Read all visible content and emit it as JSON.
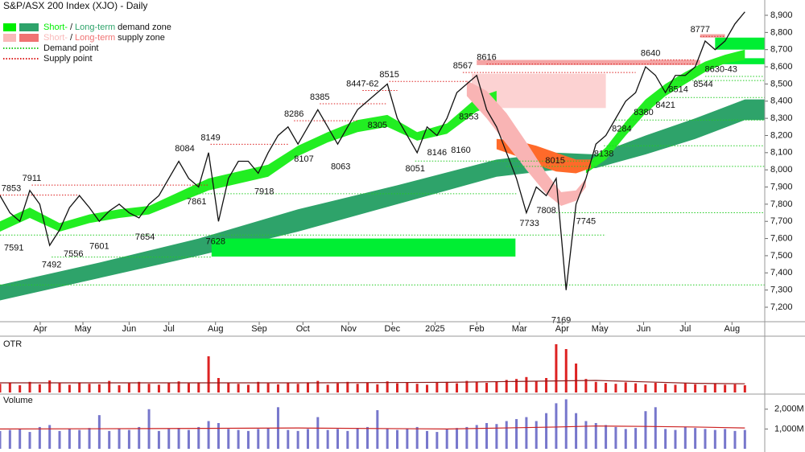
{
  "chart_data": {
    "type": "line",
    "title": "S&P/ASX 200 Index (XJO) - Daily",
    "legend": [
      {
        "short": "Short-",
        "sep": "/",
        "long": "Long-term",
        "rest": "demand zone",
        "colors": [
          "#00ee00",
          "#2ea36a"
        ]
      },
      {
        "short": "Short-",
        "sep": "/",
        "long": "Long-term",
        "rest": "supply zone",
        "colors": [
          "#f9b9b9",
          "#f07272"
        ]
      },
      {
        "label": "Demand point",
        "color": "#22cc22"
      },
      {
        "label": "Supply point",
        "color": "#dd2222"
      }
    ],
    "xlim": [
      0,
      77
    ],
    "ylim": [
      7125,
      8989
    ],
    "xticks": [
      {
        "value": 4.05,
        "label": "Apr"
      },
      {
        "value": 8.35,
        "label": "May"
      },
      {
        "value": 13,
        "label": "Jun"
      },
      {
        "value": 17,
        "label": "Jul"
      },
      {
        "value": 21.7,
        "label": "Aug"
      },
      {
        "value": 26.1,
        "label": "Sep"
      },
      {
        "value": 30.5,
        "label": "Oct"
      },
      {
        "value": 35.1,
        "label": "Nov"
      },
      {
        "value": 39.5,
        "label": "Dec"
      },
      {
        "value": 43.8,
        "label": "2025"
      },
      {
        "value": 48,
        "label": "Feb"
      },
      {
        "value": 52.3,
        "label": "Mar"
      },
      {
        "value": 56.6,
        "label": "Apr"
      },
      {
        "value": 60.4,
        "label": "May"
      },
      {
        "value": 64.8,
        "label": "Jun"
      },
      {
        "value": 69,
        "label": "Jul"
      },
      {
        "value": 73.7,
        "label": "Aug"
      }
    ],
    "yticks": [
      {
        "value": 7200,
        "label": "7,200"
      },
      {
        "value": 7300,
        "label": "7,300"
      },
      {
        "value": 7400,
        "label": "7,400"
      },
      {
        "value": 7500,
        "label": "7,500"
      },
      {
        "value": 7600,
        "label": "7,600"
      },
      {
        "value": 7700,
        "label": "7,700"
      },
      {
        "value": 7800,
        "label": "7,800"
      },
      {
        "value": 7900,
        "label": "7,900"
      },
      {
        "value": 8000,
        "label": "8,000"
      },
      {
        "value": 8100,
        "label": "8,100"
      },
      {
        "value": 8200,
        "label": "8,200"
      },
      {
        "value": 8300,
        "label": "8,300"
      },
      {
        "value": 8400,
        "label": "8,400"
      },
      {
        "value": 8500,
        "label": "8,500"
      },
      {
        "value": 8600,
        "label": "8,600"
      },
      {
        "value": 8700,
        "label": "8,700"
      },
      {
        "value": 8800,
        "label": "8,800"
      },
      {
        "value": 8900,
        "label": "8,900"
      }
    ],
    "series": [
      {
        "color": "#111111",
        "x": [
          0,
          1,
          2,
          3,
          4,
          5,
          6,
          7,
          8,
          9,
          10,
          11,
          12,
          13,
          14,
          15,
          16,
          17,
          18,
          19,
          20,
          21,
          22,
          23,
          24,
          25,
          26,
          27,
          28,
          29,
          30,
          31,
          32,
          33,
          34,
          35,
          36,
          37,
          38,
          39,
          40,
          41,
          42,
          43,
          44,
          45,
          46,
          47,
          48,
          49,
          50,
          51,
          52,
          53,
          54,
          55,
          56,
          57,
          58,
          59,
          60,
          61,
          62,
          63,
          64,
          65,
          66,
          67,
          68,
          69,
          70,
          71,
          72,
          73,
          74,
          75
        ],
        "values": [
          7850,
          7750,
          7700,
          7880,
          7800,
          7560,
          7650,
          7780,
          7850,
          7780,
          7700,
          7760,
          7800,
          7750,
          7720,
          7800,
          7850,
          7950,
          8050,
          7950,
          7900,
          8100,
          7700,
          7950,
          8050,
          8050,
          7980,
          8100,
          8200,
          8250,
          8150,
          8250,
          8350,
          8250,
          8150,
          8250,
          8350,
          8400,
          8450,
          8500,
          8300,
          8200,
          8100,
          8250,
          8200,
          8300,
          8450,
          8500,
          8550,
          8350,
          8250,
          8100,
          7950,
          7750,
          7900,
          7850,
          7950,
          7300,
          7800,
          7950,
          8150,
          8200,
          8300,
          8400,
          8450,
          8600,
          8550,
          8450,
          8550,
          8550,
          8600,
          8750,
          8700,
          8750,
          8850,
          8920
        ]
      }
    ],
    "bands": [
      {
        "color": "#2ea36a",
        "x": [
          0,
          10,
          20,
          30,
          40,
          50,
          56,
          60,
          65,
          70,
          75,
          77
        ],
        "lower": [
          7240,
          7370,
          7500,
          7640,
          7800,
          7960,
          8000,
          8010,
          8090,
          8180,
          8290,
          8290
        ],
        "upper": [
          7330,
          7460,
          7600,
          7770,
          7910,
          8060,
          8100,
          8090,
          8200,
          8300,
          8410,
          8410
        ]
      },
      {
        "color": "#22ee22",
        "x": [
          0,
          3,
          6,
          9,
          12,
          15,
          18,
          21,
          24,
          27,
          30,
          33,
          36,
          39,
          42,
          45,
          48,
          50
        ],
        "lower": [
          7640,
          7720,
          7640,
          7690,
          7720,
          7740,
          7810,
          7880,
          7920,
          7960,
          8080,
          8160,
          8220,
          8250,
          8170,
          8210,
          8340,
          8380
        ],
        "upper": [
          7700,
          7780,
          7690,
          7740,
          7770,
          7790,
          7870,
          7950,
          7990,
          8030,
          8140,
          8220,
          8290,
          8320,
          8220,
          8270,
          8420,
          8460
        ]
      },
      {
        "color": "#22ee22",
        "x": [
          59,
          61,
          63,
          65,
          67,
          69,
          71,
          73,
          75
        ],
        "lower": [
          7980,
          8060,
          8200,
          8330,
          8430,
          8500,
          8570,
          8620,
          8640
        ],
        "upper": [
          8030,
          8130,
          8280,
          8410,
          8500,
          8570,
          8630,
          8670,
          8700
        ]
      },
      {
        "color": "#ff6a2a",
        "x": [
          50,
          52,
          54,
          56,
          58,
          59.5
        ],
        "lower": [
          8120,
          8080,
          8030,
          7990,
          7980,
          8010
        ],
        "upper": [
          8180,
          8170,
          8140,
          8100,
          8060,
          8060
        ]
      },
      {
        "color": "#f9b4b4",
        "x": [
          47,
          49,
          51,
          53,
          55,
          56.5,
          58,
          59
        ],
        "lower": [
          8430,
          8300,
          8150,
          8000,
          7860,
          7790,
          7820,
          7900
        ],
        "upper": [
          8520,
          8460,
          8330,
          8160,
          7980,
          7870,
          7880,
          7950
        ]
      }
    ],
    "zones": [
      {
        "color": "#00ee33",
        "x": [
          21.3,
          51.9
        ],
        "y": [
          7495,
          7600
        ]
      },
      {
        "color": "#fcd2d2",
        "x": [
          47.5,
          61
        ],
        "y": [
          8360,
          8560
        ]
      },
      {
        "color": "#f4a3a3",
        "x": [
          48,
          70.5
        ],
        "y": [
          8610,
          8640
        ]
      },
      {
        "color": "#f4a3a3",
        "x": [
          70.5,
          73
        ],
        "y": [
          8770,
          8790
        ]
      },
      {
        "color": "#00ee33",
        "x": [
          72,
          77
        ],
        "y": [
          8700,
          8770
        ]
      },
      {
        "color": "#00ee33",
        "x": [
          72.5,
          77
        ],
        "y": [
          8615,
          8650
        ]
      }
    ],
    "demand_points": [
      {
        "y": 7330,
        "x": [
          0,
          77
        ]
      },
      {
        "y": 7492,
        "x": [
          5.2,
          21.3
        ]
      },
      {
        "y": 7620,
        "x": [
          0,
          61
        ]
      },
      {
        "y": 7750,
        "x": [
          56,
          77
        ]
      },
      {
        "y": 7861,
        "x": [
          19.8,
          52
        ]
      },
      {
        "y": 8020,
        "x": [
          51,
          77
        ]
      },
      {
        "y": 8051,
        "x": [
          41.8,
          60
        ]
      },
      {
        "y": 8140,
        "x": [
          60.8,
          77
        ]
      },
      {
        "y": 8290,
        "x": [
          62,
          77
        ]
      },
      {
        "y": 8421,
        "x": [
          67,
          77
        ]
      },
      {
        "y": 8520,
        "x": [
          68,
          77
        ]
      },
      {
        "y": 8544,
        "x": [
          71,
          77
        ]
      }
    ],
    "supply_points": [
      {
        "y": 7853,
        "x": [
          0,
          8
        ]
      },
      {
        "y": 7911,
        "x": [
          3.2,
          21
        ]
      },
      {
        "y": 8149,
        "x": [
          21.2,
          29
        ]
      },
      {
        "y": 8286,
        "x": [
          29.6,
          36
        ]
      },
      {
        "y": 8385,
        "x": [
          32.2,
          39
        ]
      },
      {
        "y": 8462,
        "x": [
          36.5,
          40
        ]
      },
      {
        "y": 8515,
        "x": [
          39.2,
          47
        ]
      },
      {
        "y": 8567,
        "x": [
          46.6,
          64
        ]
      },
      {
        "y": 8616,
        "x": [
          49,
          70
        ]
      },
      {
        "y": 8640,
        "x": [
          65.5,
          70
        ]
      },
      {
        "y": 8777,
        "x": [
          70.5,
          73
        ]
      }
    ],
    "annotations": [
      {
        "label": "7853",
        "x": 0,
        "y": 7853,
        "pos": "above"
      },
      {
        "label": "7911",
        "x": 3.2,
        "y": 7911,
        "pos": "above"
      },
      {
        "label": "7591",
        "x": 1.4,
        "y": 7591,
        "pos": "below"
      },
      {
        "label": "7492",
        "x": 5.2,
        "y": 7492,
        "pos": "below"
      },
      {
        "label": "7556",
        "x": 7.4,
        "y": 7556,
        "pos": "below"
      },
      {
        "label": "7601",
        "x": 10,
        "y": 7601,
        "pos": "below"
      },
      {
        "label": "7654",
        "x": 14.6,
        "y": 7654,
        "pos": "below"
      },
      {
        "label": "8084",
        "x": 18.6,
        "y": 8084,
        "pos": "above"
      },
      {
        "label": "8149",
        "x": 21.2,
        "y": 8149,
        "pos": "above"
      },
      {
        "label": "7861",
        "x": 19.8,
        "y": 7861,
        "pos": "below"
      },
      {
        "label": "7628",
        "x": 21.7,
        "y": 7628,
        "pos": "below"
      },
      {
        "label": "7918",
        "x": 26.6,
        "y": 7918,
        "pos": "below"
      },
      {
        "label": "8286",
        "x": 29.6,
        "y": 8286,
        "pos": "above"
      },
      {
        "label": "8107",
        "x": 30.6,
        "y": 8107,
        "pos": "below"
      },
      {
        "label": "8385",
        "x": 32.2,
        "y": 8385,
        "pos": "above"
      },
      {
        "label": "8063",
        "x": 34.3,
        "y": 8063,
        "pos": "below"
      },
      {
        "label": "8447-62",
        "x": 36.5,
        "y": 8462,
        "pos": "above"
      },
      {
        "label": "8305",
        "x": 38,
        "y": 8305,
        "pos": "below"
      },
      {
        "label": "8515",
        "x": 39.2,
        "y": 8515,
        "pos": "above"
      },
      {
        "label": "8051",
        "x": 41.8,
        "y": 8051,
        "pos": "below"
      },
      {
        "label": "8146",
        "x": 44,
        "y": 8146,
        "pos": "below"
      },
      {
        "label": "8160",
        "x": 46.4,
        "y": 8160,
        "pos": "below"
      },
      {
        "label": "8353",
        "x": 47.2,
        "y": 8353,
        "pos": "below"
      },
      {
        "label": "8567",
        "x": 46.6,
        "y": 8567,
        "pos": "above"
      },
      {
        "label": "8616",
        "x": 49,
        "y": 8616,
        "pos": "above"
      },
      {
        "label": "7733",
        "x": 53.3,
        "y": 7733,
        "pos": "below"
      },
      {
        "label": "7808",
        "x": 55,
        "y": 7808,
        "pos": "below"
      },
      {
        "label": "8015",
        "x": 55.9,
        "y": 8015,
        "pos": "above"
      },
      {
        "label": "7745",
        "x": 59,
        "y": 7745,
        "pos": "below"
      },
      {
        "label": "7169",
        "x": 56.5,
        "y": 7169,
        "pos": "below"
      },
      {
        "label": "8138",
        "x": 60.8,
        "y": 8138,
        "pos": "below"
      },
      {
        "label": "8284",
        "x": 62.6,
        "y": 8284,
        "pos": "below"
      },
      {
        "label": "8380",
        "x": 64.8,
        "y": 8380,
        "pos": "below"
      },
      {
        "label": "8421",
        "x": 67,
        "y": 8421,
        "pos": "below"
      },
      {
        "label": "8640",
        "x": 65.5,
        "y": 8640,
        "pos": "above"
      },
      {
        "label": "8514",
        "x": 68.3,
        "y": 8514,
        "pos": "below"
      },
      {
        "label": "8544",
        "x": 70.8,
        "y": 8544,
        "pos": "below"
      },
      {
        "label": "8630-43",
        "x": 72.6,
        "y": 8630,
        "pos": "below"
      },
      {
        "label": "8777",
        "x": 70.5,
        "y": 8777,
        "pos": "above"
      }
    ],
    "otr": {
      "title": "OTR",
      "color": "#dd2222",
      "ylim": [
        0,
        110
      ],
      "values": [
        18,
        20,
        15,
        22,
        17,
        25,
        19,
        16,
        21,
        18,
        17,
        24,
        15,
        19,
        22,
        18,
        16,
        20,
        23,
        19,
        21,
        75,
        30,
        20,
        18,
        16,
        22,
        19,
        17,
        20,
        18,
        21,
        24,
        16,
        19,
        22,
        18,
        20,
        17,
        23,
        19,
        21,
        18,
        16,
        20,
        22,
        19,
        24,
        21,
        20,
        23,
        26,
        28,
        32,
        24,
        30,
        100,
        90,
        60,
        28,
        22,
        20,
        18,
        21,
        19,
        17,
        20,
        18,
        16,
        19,
        17,
        15,
        18,
        16,
        17,
        15
      ],
      "ma_color": "#8b1a1a",
      "ma_x": [
        0,
        15,
        30,
        45,
        56,
        60,
        65,
        70,
        75
      ],
      "ma": [
        20,
        20,
        20,
        21,
        24,
        25,
        22,
        19,
        18
      ]
    },
    "volume": {
      "title": "Volume",
      "color": "#7777cc",
      "ylim": [
        0,
        2600
      ],
      "yticks": [
        {
          "value": 2000,
          "label": "2,000M"
        },
        {
          "value": 1000,
          "label": "1,000M"
        }
      ],
      "values": [
        900,
        950,
        1000,
        850,
        1100,
        1200,
        900,
        1000,
        950,
        1050,
        1700,
        900,
        1000,
        950,
        1100,
        2000,
        900,
        1000,
        1050,
        950,
        1100,
        1400,
        1300,
        1000,
        950,
        900,
        1000,
        1050,
        2100,
        950,
        900,
        1000,
        1600,
        950,
        1000,
        900,
        1050,
        1100,
        1950,
        1000,
        950,
        1000,
        1100,
        900,
        850,
        1000,
        1050,
        1100,
        1200,
        1300,
        1250,
        1400,
        1500,
        1600,
        1400,
        1800,
        2300,
        2500,
        1800,
        1400,
        1300,
        1200,
        1100,
        1000,
        1050,
        1900,
        2100,
        1000,
        950,
        1100,
        1050,
        1000,
        950,
        1000,
        900,
        950
      ],
      "ma_color": "#cc2222",
      "ma_x": [
        0,
        15,
        30,
        45,
        56,
        60,
        65,
        70,
        75
      ],
      "ma": [
        1000,
        1020,
        1050,
        1000,
        1100,
        1150,
        1130,
        1100,
        1050
      ]
    }
  }
}
